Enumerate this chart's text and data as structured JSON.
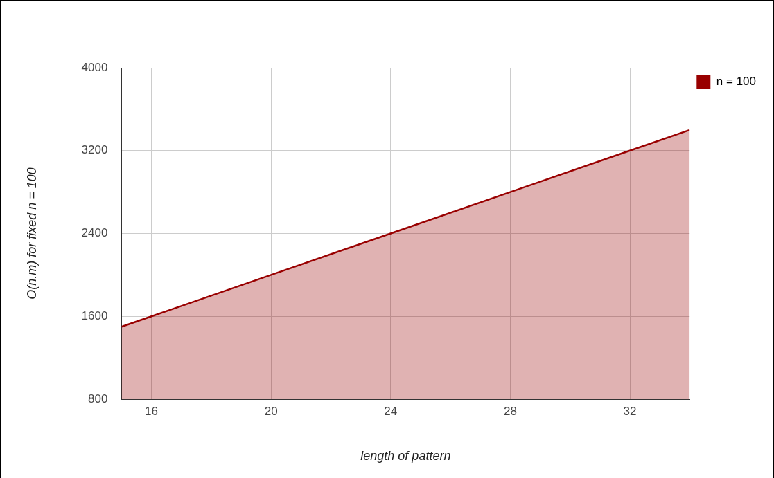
{
  "chart_data": {
    "type": "area",
    "xlabel": "length of pattern",
    "ylabel": "O(n.m) for fixed n = 100",
    "x": [
      15,
      16,
      20,
      24,
      28,
      32,
      34
    ],
    "series": [
      {
        "name": "n = 100",
        "color": "#990000",
        "values": [
          1500,
          1600,
          2000,
          2400,
          2800,
          3200,
          3400
        ]
      }
    ],
    "xlim": [
      15,
      34
    ],
    "xticks": [
      16,
      20,
      24,
      28,
      32
    ],
    "ylim": [
      800,
      4000
    ],
    "yticks": [
      800,
      1600,
      2400,
      3200,
      4000
    ],
    "grid": true,
    "legend": "top right",
    "marker": "none",
    "line_style": "solid"
  }
}
